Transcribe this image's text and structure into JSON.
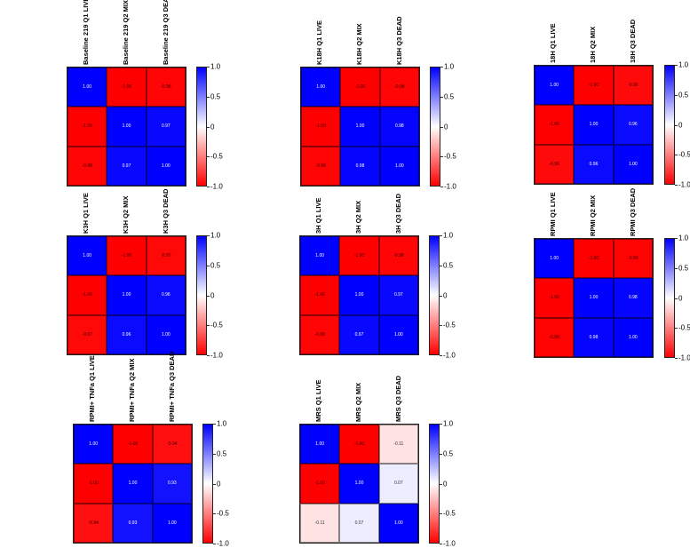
{
  "colorbar": {
    "ticks": [
      "1.0",
      "0.5",
      "0",
      "-0.5",
      "-1.0"
    ],
    "colors": {
      "positive": "#0000ff",
      "zero": "#ffffff",
      "negative": "#ff0000"
    }
  },
  "chart_data": [
    {
      "type": "heatmap",
      "title": "Baseline 219",
      "rows": [
        "Baseline 219 Q1 LIVE",
        "Baseline 219 Q2 MIX",
        "Baseline 219 Q3 DEAD"
      ],
      "columns": [
        "Baseline 219 Q1 LIVE",
        "Baseline 219 Q2 MIX",
        "Baseline 219 Q3 DEAD"
      ],
      "values": [
        [
          1.0,
          -1.0,
          -0.98
        ],
        [
          -1.0,
          1.0,
          0.97
        ],
        [
          -0.98,
          0.97,
          1.0
        ]
      ],
      "labels": [
        [
          "1.00",
          "-1.00",
          "-0.98"
        ],
        [
          "-1.00",
          "1.00",
          "0.97"
        ],
        [
          "-0.98",
          "0.97",
          "1.00"
        ]
      ],
      "colorbar_range": [
        -1.0,
        1.0
      ]
    },
    {
      "type": "heatmap",
      "title": "K18H",
      "rows": [
        "K18H Q1 LIVE",
        "K18H Q2 MIX",
        "K18H Q3 DEAD"
      ],
      "columns": [
        "K18H Q1 LIVE",
        "K18H Q2 MIX",
        "K18H Q3 DEAD"
      ],
      "values": [
        [
          1.0,
          -1.0,
          -0.98
        ],
        [
          -1.0,
          1.0,
          0.98
        ],
        [
          -0.98,
          0.98,
          1.0
        ]
      ],
      "labels": [
        [
          "1.00",
          "-1.00",
          "-0.98"
        ],
        [
          "-1.00",
          "1.00",
          "0.98"
        ],
        [
          "-0.98",
          "0.98",
          "1.00"
        ]
      ],
      "colorbar_range": [
        -1.0,
        1.0
      ]
    },
    {
      "type": "heatmap",
      "title": "18H",
      "rows": [
        "18H Q1 LIVE",
        "18H Q2 MIX",
        "18H Q3 DEAD"
      ],
      "columns": [
        "18H Q1 LIVE",
        "18H Q2 MIX",
        "18H Q3 DEAD"
      ],
      "values": [
        [
          1.0,
          -1.0,
          -0.96
        ],
        [
          -1.0,
          1.0,
          0.96
        ],
        [
          -0.96,
          0.96,
          1.0
        ]
      ],
      "labels": [
        [
          "1.00",
          "-1.00",
          "-0.96"
        ],
        [
          "-1.00",
          "1.00",
          "0.96"
        ],
        [
          "-0.96",
          "0.96",
          "1.00"
        ]
      ],
      "colorbar_range": [
        -1.0,
        1.0
      ]
    },
    {
      "type": "heatmap",
      "title": "K3H",
      "rows": [
        "K3H Q1 LIVE",
        "K3H Q2 MIX",
        "K3H Q3 DEAD"
      ],
      "columns": [
        "K3H Q1 LIVE",
        "K3H Q2 MIX",
        "K3H Q3 DEAD"
      ],
      "values": [
        [
          1.0,
          -1.0,
          -0.97
        ],
        [
          -1.0,
          1.0,
          0.96
        ],
        [
          -0.97,
          0.96,
          1.0
        ]
      ],
      "labels": [
        [
          "1.00",
          "-1.00",
          "-0.97"
        ],
        [
          "-1.00",
          "1.00",
          "0.96"
        ],
        [
          "-0.97",
          "0.96",
          "1.00"
        ]
      ],
      "colorbar_range": [
        -1.0,
        1.0
      ]
    },
    {
      "type": "heatmap",
      "title": "3H",
      "rows": [
        "3H Q1 LIVE",
        "3H Q2 MIX",
        "3H Q3 DEAD"
      ],
      "columns": [
        "3H Q1 LIVE",
        "3H Q2 MIX",
        "3H Q3 DEAD"
      ],
      "values": [
        [
          1.0,
          -1.0,
          -0.98
        ],
        [
          -1.0,
          1.0,
          0.97
        ],
        [
          -0.98,
          0.97,
          1.0
        ]
      ],
      "labels": [
        [
          "1.00",
          "-1.00",
          "-0.98"
        ],
        [
          "-1.00",
          "1.00",
          "0.97"
        ],
        [
          "-0.98",
          "0.97",
          "1.00"
        ]
      ],
      "colorbar_range": [
        -1.0,
        1.0
      ]
    },
    {
      "type": "heatmap",
      "title": "RPMI",
      "rows": [
        "RPMI Q1 LIVE",
        "RPMI Q2 MIX",
        "RPMI Q3 DEAD"
      ],
      "columns": [
        "RPMI Q1 LIVE",
        "RPMI Q2 MIX",
        "RPMI Q3 DEAD"
      ],
      "values": [
        [
          1.0,
          -1.0,
          -0.99
        ],
        [
          -1.0,
          1.0,
          0.98
        ],
        [
          -0.99,
          0.98,
          1.0
        ]
      ],
      "labels": [
        [
          "1.00",
          "-1.00",
          "-0.99"
        ],
        [
          "-1.00",
          "1.00",
          "0.98"
        ],
        [
          "-0.99",
          "0.98",
          "1.00"
        ]
      ],
      "colorbar_range": [
        -1.0,
        1.0
      ]
    },
    {
      "type": "heatmap",
      "title": "RPMI+ TNFa",
      "rows": [
        "RPMI+ TNFa Q1 LIVE",
        "RPMI+ TNFa Q2 MIX",
        "RPMI+ TNFa Q3 DEAD"
      ],
      "columns": [
        "RPMI+ TNFa Q1 LIVE",
        "RPMI+ TNFa Q2 MIX",
        "RPMI+ TNFa Q3 DEAD"
      ],
      "values": [
        [
          1.0,
          -1.0,
          -0.94
        ],
        [
          -1.0,
          1.0,
          0.93
        ],
        [
          -0.94,
          0.93,
          1.0
        ]
      ],
      "labels": [
        [
          "1.00",
          "-1.00",
          "-0.94"
        ],
        [
          "-1.00",
          "1.00",
          "0.93"
        ],
        [
          "-0.94",
          "0.93",
          "1.00"
        ]
      ],
      "colorbar_range": [
        -1.0,
        1.0
      ]
    },
    {
      "type": "heatmap",
      "title": "MRS",
      "rows": [
        "MRS Q1 LIVE",
        "MRS Q2 MIX",
        "MRS Q3 DEAD"
      ],
      "columns": [
        "MRS Q1 LIVE",
        "MRS Q2 MIX",
        "MRS Q3 DEAD"
      ],
      "values": [
        [
          1.0,
          -1.0,
          -0.11
        ],
        [
          -1.0,
          1.0,
          0.07
        ],
        [
          -0.11,
          0.07,
          1.0
        ]
      ],
      "labels": [
        [
          "1.00",
          "-1.00",
          "-0.11"
        ],
        [
          "-1.00",
          "1.00",
          "0.07"
        ],
        [
          "-0.11",
          "0.07",
          "1.00"
        ]
      ],
      "colorbar_range": [
        -1.0,
        1.0
      ]
    }
  ]
}
